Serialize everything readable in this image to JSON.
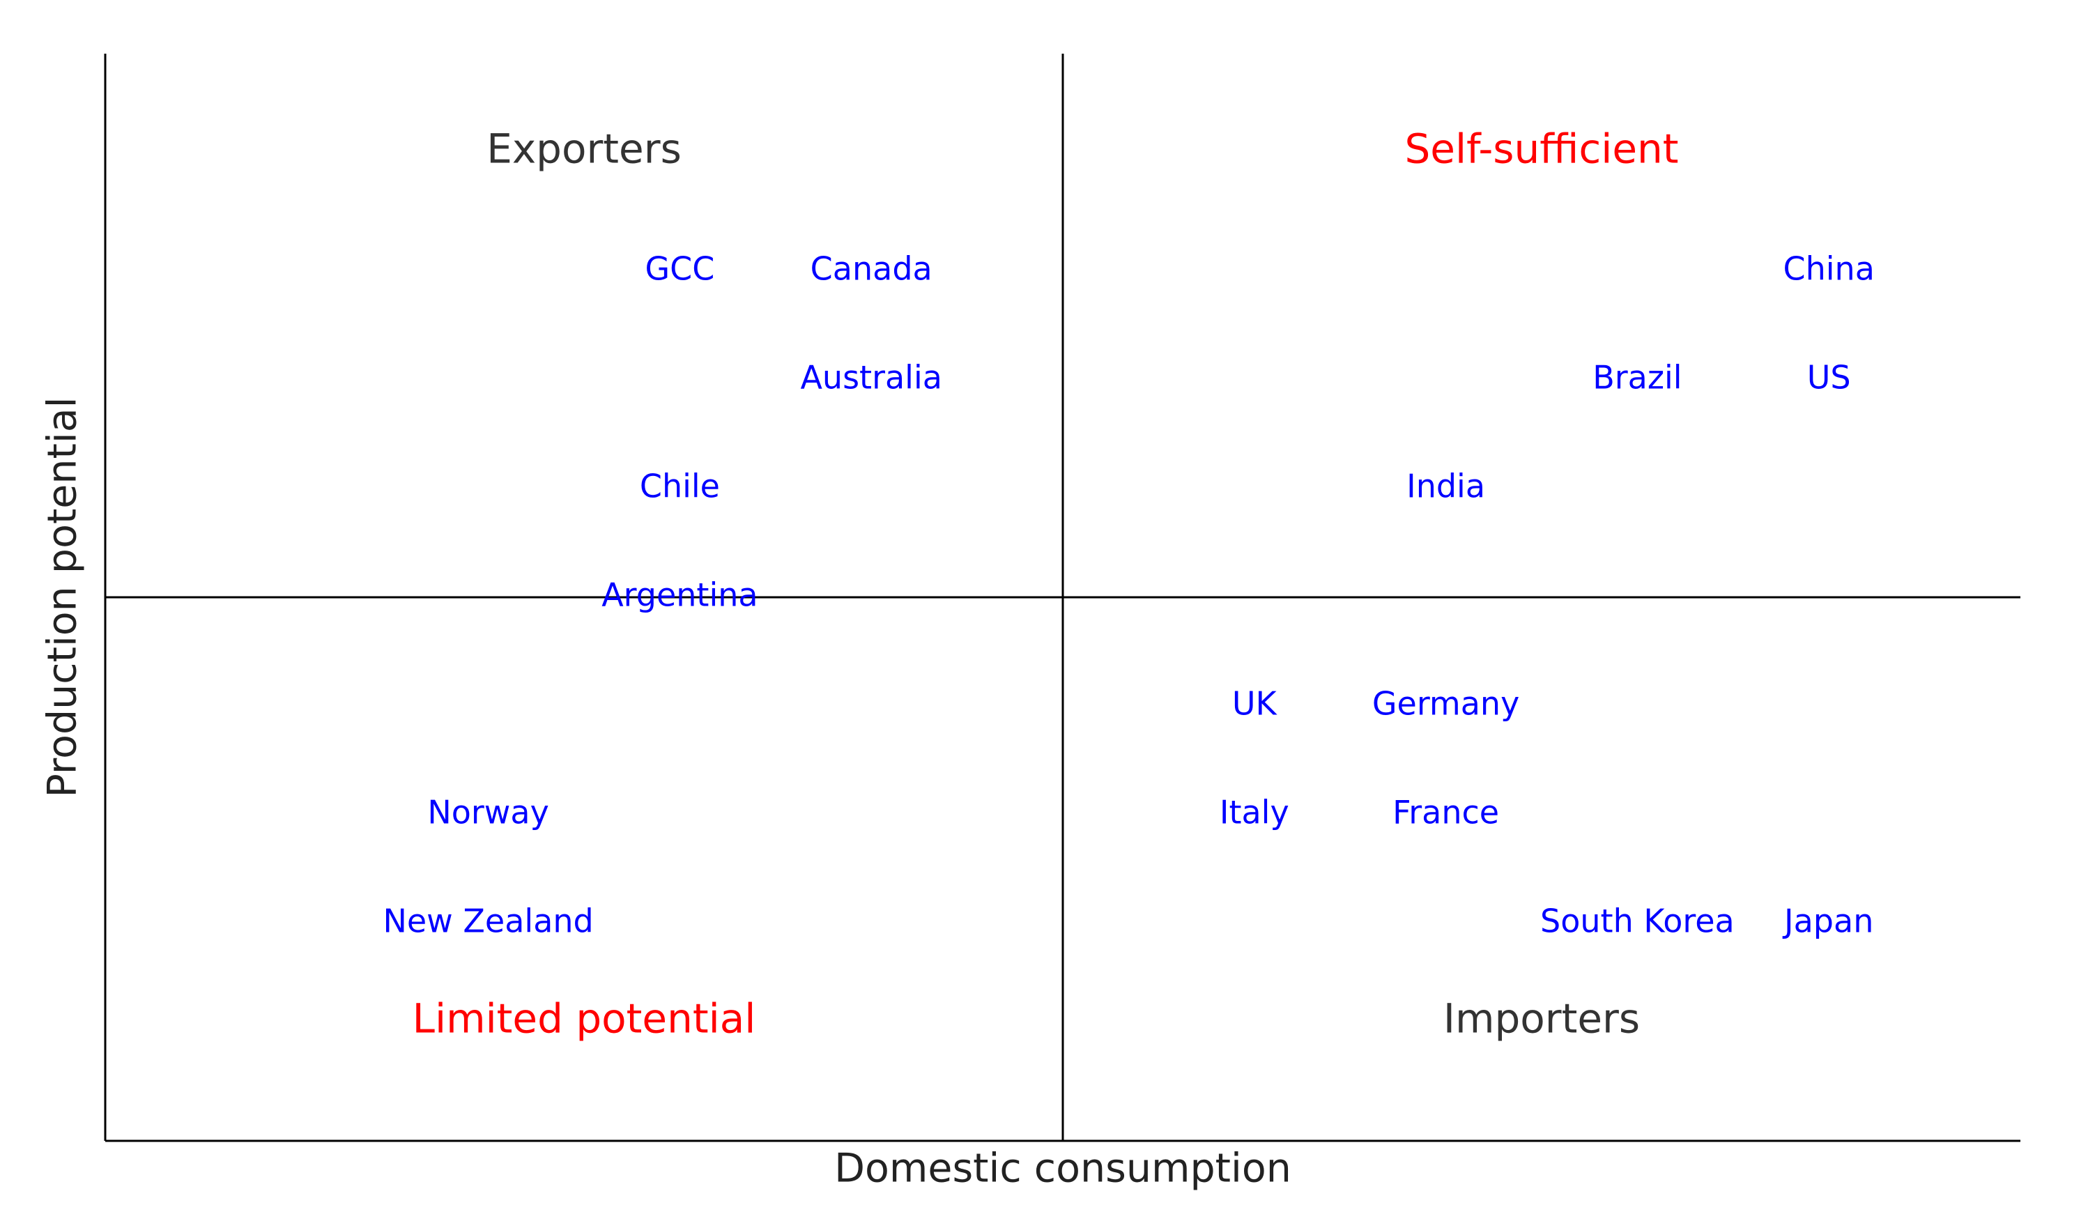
{
  "chart_data": {
    "type": "text-scatter",
    "xlabel": "Domestic consumption",
    "ylabel": "Production potential",
    "xlim": [
      0,
      10
    ],
    "ylim": [
      0,
      10
    ],
    "quadrant_split": [
      5,
      5
    ],
    "color": "#0000ff",
    "labels": [
      "GCC",
      "Canada",
      "Australia",
      "Chile",
      "Argentina",
      "China",
      "Brazil",
      "US",
      "India",
      "UK",
      "Germany",
      "Italy",
      "France",
      "South Korea",
      "Japan",
      "Norway",
      "New Zealand"
    ],
    "x": [
      3,
      4,
      4,
      3,
      3,
      9,
      8,
      9,
      7,
      6,
      7,
      6,
      7,
      8,
      9,
      2,
      2
    ],
    "y": [
      8,
      8,
      7,
      6,
      5,
      8,
      7,
      7,
      6,
      4,
      4,
      3,
      3,
      2,
      2,
      3,
      2
    ],
    "quadrants": [
      {
        "label": "Exporters",
        "x": 2.5,
        "y": 9.1,
        "color": "#333333"
      },
      {
        "label": "Self-sufficient",
        "x": 7.5,
        "y": 9.1,
        "color": "#ff0000"
      },
      {
        "label": "Limited potential",
        "x": 2.5,
        "y": 1.1,
        "color": "#ff0000"
      },
      {
        "label": "Importers",
        "x": 7.5,
        "y": 1.1,
        "color": "#333333"
      }
    ]
  }
}
